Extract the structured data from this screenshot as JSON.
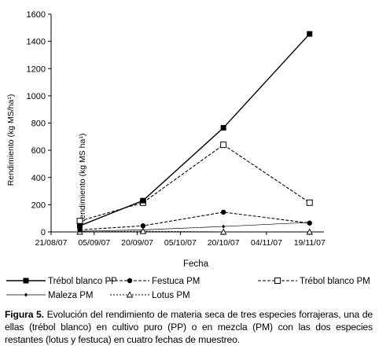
{
  "chart_data": {
    "type": "line",
    "xlabel": "Fecha",
    "ylabel": "Rendimiento (kg MS/ha¹)",
    "ylabel_overlay": "Rendimiento (kg MS ha¹)",
    "ylim": [
      0,
      1600
    ],
    "yticks": [
      "0",
      "200",
      "400",
      "600",
      "800",
      "1000",
      "1200",
      "1400",
      "1600"
    ],
    "xlim": [
      "2007-08-21",
      "2007-11-24"
    ],
    "xticks": [
      "21/08/07",
      "05/09/07",
      "20/09/07",
      "05/10/07",
      "20/10/07",
      "04/11/07",
      "19/11/07"
    ],
    "x": [
      "2007-08-31",
      "2007-09-22",
      "2007-10-20",
      "2007-11-19"
    ],
    "grid": false,
    "legend_position": "bottom",
    "series": [
      {
        "name": "Trébol blanco PP",
        "values": [
          45,
          230,
          765,
          1455
        ],
        "color": "#000000",
        "marker": "filled-square",
        "line": "solid"
      },
      {
        "name": "Festuca PM",
        "values": [
          15,
          45,
          145,
          65
        ],
        "color": "#000000",
        "marker": "filled-circle",
        "line": "dashed"
      },
      {
        "name": "Trébol blanco PM",
        "values": [
          80,
          215,
          640,
          215
        ],
        "color": "#000000",
        "marker": "open-square",
        "line": "dashed"
      },
      {
        "name": "Maleza PM",
        "values": [
          5,
          15,
          40,
          70
        ],
        "color": "#000000",
        "marker": "small-diamond",
        "line": "solid-thin"
      },
      {
        "name": "Lotus PM",
        "values": [
          0,
          5,
          0,
          0
        ],
        "color": "#000000",
        "marker": "open-triangle",
        "line": "dotted"
      }
    ]
  },
  "caption": {
    "label": "Figura 5.",
    "text": " Evolución del rendimiento de materia seca de tres especies forrajeras, una de ellas (trébol blanco) en cultivo puro (PP) o en mezcla (PM) con las dos especies restantes (lotus y festuca) en cuatro fechas de muestreo."
  }
}
